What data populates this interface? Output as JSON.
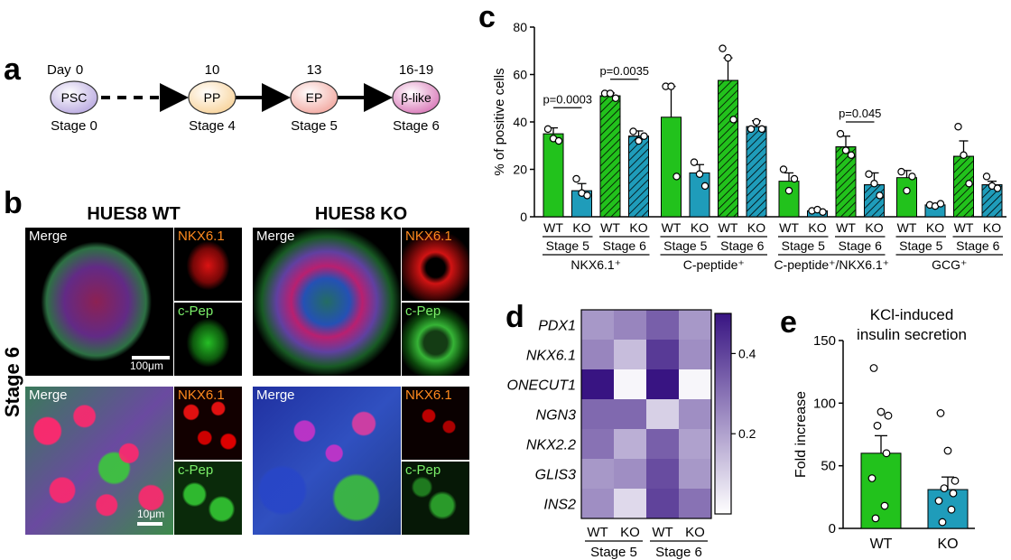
{
  "panels": {
    "a": {
      "label": "a",
      "day_label": "Day",
      "nodes": [
        {
          "name": "PSC",
          "day": "0",
          "stage": "Stage 0",
          "color": "#b9a9e0"
        },
        {
          "name": "PP",
          "day": "10",
          "stage": "Stage 4",
          "color": "#f8d39a"
        },
        {
          "name": "EP",
          "day": "13",
          "stage": "Stage 5",
          "color": "#f2a8a0"
        },
        {
          "name": "β-like",
          "day": "16-19",
          "stage": "Stage 6",
          "color": "#d978b8"
        }
      ]
    },
    "b": {
      "label": "b",
      "col_titles": [
        "HUES8 WT",
        "HUES8 KO"
      ],
      "row_label": "Stage 6",
      "merge_label": "Merge",
      "nkx_label": "NKX6.1",
      "cpep_label": "c-Pep",
      "scale_top": "100μm",
      "scale_bottom": "10μm",
      "nkx_color": "#ff8a1e",
      "cpep_color": "#7cf06a"
    },
    "c": {
      "label": "c"
    },
    "d": {
      "label": "d"
    },
    "e": {
      "label": "e"
    }
  },
  "chart_data": [
    {
      "id": "c",
      "type": "bar",
      "ylabel": "% of positive cells",
      "ylim": [
        0,
        80
      ],
      "yticks": [
        0,
        20,
        40,
        60,
        80
      ],
      "groups": [
        {
          "name": "NKX6.1⁺",
          "bars": [
            {
              "cat": "WT",
              "stage": "Stage 5",
              "value": 35,
              "err": 2.5,
              "color": "#22c21c",
              "hatch": false,
              "points": [
                37,
                33,
                32
              ]
            },
            {
              "cat": "KO",
              "stage": "Stage 5",
              "value": 11,
              "err": 3,
              "color": "#1f9cba",
              "hatch": false,
              "points": [
                16,
                10,
                9
              ]
            },
            {
              "cat": "WT",
              "stage": "Stage 6",
              "value": 51,
              "err": 1.2,
              "color": "#22c21c",
              "hatch": true,
              "points": [
                52,
                52,
                50
              ]
            },
            {
              "cat": "KO",
              "stage": "Stage 6",
              "value": 34,
              "err": 2.2,
              "color": "#1f9cba",
              "hatch": true,
              "points": [
                36,
                32,
                34
              ]
            }
          ]
        },
        {
          "name": "C-peptide⁺",
          "bars": [
            {
              "cat": "WT",
              "stage": "Stage 5",
              "value": 42,
              "err": 13,
              "color": "#22c21c",
              "hatch": false,
              "points": [
                55,
                55,
                17
              ]
            },
            {
              "cat": "KO",
              "stage": "Stage 5",
              "value": 18.5,
              "err": 3.5,
              "color": "#1f9cba",
              "hatch": false,
              "points": [
                23,
                18,
                13
              ]
            },
            {
              "cat": "WT",
              "stage": "Stage 6",
              "value": 57.5,
              "err": 9.5,
              "color": "#22c21c",
              "hatch": true,
              "points": [
                71,
                67,
                41
              ]
            },
            {
              "cat": "KO",
              "stage": "Stage 6",
              "value": 38,
              "err": 2.5,
              "color": "#1f9cba",
              "hatch": true,
              "points": [
                37,
                40,
                37
              ]
            }
          ]
        },
        {
          "name": "C-peptide⁺/NKX6.1⁺",
          "bars": [
            {
              "cat": "WT",
              "stage": "Stage 5",
              "value": 15,
              "err": 3.5,
              "color": "#22c21c",
              "hatch": false,
              "points": [
                20,
                11,
                16
              ]
            },
            {
              "cat": "KO",
              "stage": "Stage 5",
              "value": 2.5,
              "err": 0.6,
              "color": "#1f9cba",
              "hatch": false,
              "points": [
                2.5,
                3,
                2
              ]
            },
            {
              "cat": "WT",
              "stage": "Stage 6",
              "value": 29.5,
              "err": 4.5,
              "color": "#22c21c",
              "hatch": true,
              "points": [
                35,
                28,
                26
              ]
            },
            {
              "cat": "KO",
              "stage": "Stage 6",
              "value": 13.5,
              "err": 5,
              "color": "#1f9cba",
              "hatch": true,
              "points": [
                18,
                14,
                9
              ]
            }
          ]
        },
        {
          "name": "GCG⁺",
          "bars": [
            {
              "cat": "WT",
              "stage": "Stage 5",
              "value": 16.5,
              "err": 3,
              "color": "#22c21c",
              "hatch": false,
              "points": [
                19,
                11,
                17
              ]
            },
            {
              "cat": "KO",
              "stage": "Stage 5",
              "value": 5,
              "err": 0.6,
              "color": "#1f9cba",
              "hatch": false,
              "points": [
                5,
                4.5,
                5.5
              ]
            },
            {
              "cat": "WT",
              "stage": "Stage 6",
              "value": 25.5,
              "err": 6.5,
              "color": "#22c21c",
              "hatch": true,
              "points": [
                38,
                26,
                14
              ]
            },
            {
              "cat": "KO",
              "stage": "Stage 6",
              "value": 13.5,
              "err": 1.5,
              "color": "#1f9cba",
              "hatch": true,
              "points": [
                17,
                13,
                12
              ]
            }
          ]
        }
      ],
      "annotations": [
        {
          "text": "p=0.0003",
          "group": 0,
          "from": 0,
          "to": 1,
          "y": 46
        },
        {
          "text": "p=0.0035",
          "group": 0,
          "from": 2,
          "to": 3,
          "y": 58
        },
        {
          "text": "p=0.045",
          "group": 2,
          "from": 2,
          "to": 3,
          "y": 40
        }
      ]
    },
    {
      "id": "d",
      "type": "heatmap",
      "rows": [
        "PDX1",
        "NKX6.1",
        "ONECUT1",
        "NGN3",
        "NKX2.2",
        "GLIS3",
        "INS2"
      ],
      "columns": [
        "WT",
        "KO",
        "WT",
        "KO"
      ],
      "column_groups": [
        "Stage 5",
        "Stage 6"
      ],
      "values": [
        [
          0.22,
          0.26,
          0.34,
          0.22
        ],
        [
          0.26,
          0.14,
          0.42,
          0.24
        ],
        [
          0.5,
          0.02,
          0.5,
          0.02
        ],
        [
          0.32,
          0.32,
          0.1,
          0.24
        ],
        [
          0.3,
          0.17,
          0.34,
          0.2
        ],
        [
          0.22,
          0.24,
          0.38,
          0.22
        ],
        [
          0.24,
          0.08,
          0.4,
          0.3
        ]
      ],
      "colorbar_ticks": [
        0.2,
        0.4
      ],
      "colorbar_range": [
        0,
        0.5
      ]
    },
    {
      "id": "e",
      "type": "bar",
      "title": "KCl-induced insulin secretion",
      "ylabel": "Fold increase",
      "ylim": [
        0,
        150
      ],
      "yticks": [
        0,
        50,
        100,
        150
      ],
      "categories": [
        "WT",
        "KO"
      ],
      "values": [
        60,
        31
      ],
      "errors": [
        14,
        10
      ],
      "colors": [
        "#22c21c",
        "#1f9cba"
      ],
      "points": [
        [
          128,
          93,
          90,
          82,
          60,
          40,
          18,
          8
        ],
        [
          92,
          62,
          38,
          32,
          28,
          22,
          15,
          5
        ]
      ]
    }
  ]
}
